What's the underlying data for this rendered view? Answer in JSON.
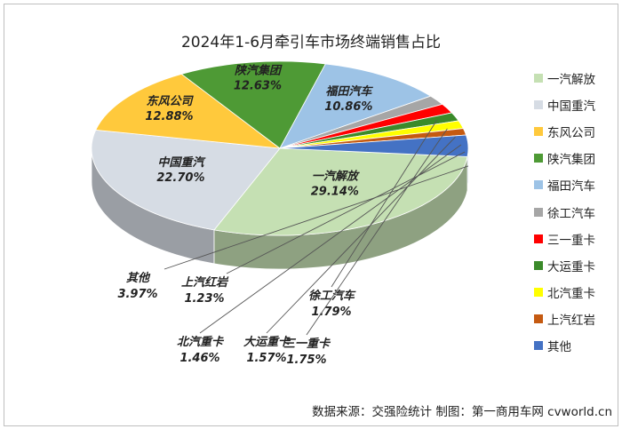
{
  "title": "2024年1-6月牵引车市场终端销售占比",
  "source_note": "数据来源：交强险统计   制图：第一商用车网 cvworld.cn",
  "chart_data": {
    "type": "pie",
    "style": "3d",
    "title": "2024年1-6月牵引车市场终端销售占比",
    "legend_position": "right",
    "slices": [
      {
        "name": "一汽解放",
        "value": 29.14,
        "label": "29.14%",
        "color": "#c5e0b3"
      },
      {
        "name": "中国重汽",
        "value": 22.7,
        "label": "22.70%",
        "color": "#d6dce4"
      },
      {
        "name": "东风公司",
        "value": 12.88,
        "label": "12.88%",
        "color": "#ffc93c"
      },
      {
        "name": "陕汽集团",
        "value": 12.63,
        "label": "12.63%",
        "color": "#4e9a35"
      },
      {
        "name": "福田汽车",
        "value": 10.86,
        "label": "10.86%",
        "color": "#9dc3e6"
      },
      {
        "name": "徐工汽车",
        "value": 1.79,
        "label": "1.79%",
        "color": "#a6a6a6"
      },
      {
        "name": "三一重卡",
        "value": 1.75,
        "label": "1.75%",
        "color": "#ff0000"
      },
      {
        "name": "大运重卡",
        "value": 1.57,
        "label": "1.57%",
        "color": "#3b8a2a"
      },
      {
        "name": "北汽重卡",
        "value": 1.46,
        "label": "1.46%",
        "color": "#ffff00"
      },
      {
        "name": "上汽红岩",
        "value": 1.23,
        "label": "1.23%",
        "color": "#c55a11"
      },
      {
        "name": "其他",
        "value": 3.97,
        "label": "3.97%",
        "color": "#4472c4"
      }
    ]
  }
}
